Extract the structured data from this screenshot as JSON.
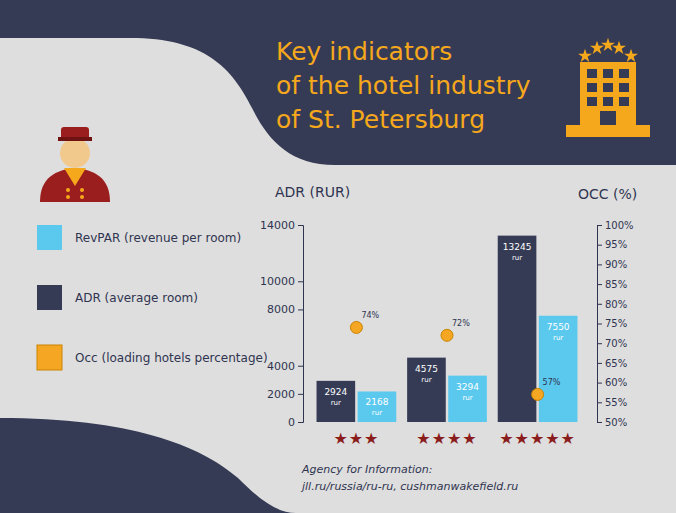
{
  "chart_data": {
    "type": "bar",
    "title": "Key indicators\nof the hotel industry\nof St. Petersburg",
    "y_label": "ADR (RUR)",
    "y2_label": "OCC (%)",
    "categories": [
      "★★★",
      "★★★★",
      "★★★★★"
    ],
    "series": [
      {
        "name": "RevPAR (revenue per room)",
        "type": "bar",
        "color": "#5bc9ee",
        "values": [
          2168,
          3294,
          7550
        ],
        "value_labels": [
          "2168 rur",
          "3294 rur",
          "7550 rur"
        ]
      },
      {
        "name": "ADR (average room)",
        "type": "bar",
        "color": "#363b55",
        "values": [
          2924,
          4575,
          13245
        ],
        "value_labels": [
          "2924 rur",
          "4575 rur",
          "13245 rur"
        ]
      },
      {
        "name": "Occ (loading hotels percentage)",
        "type": "scatter",
        "axis": "y2",
        "color": "#f5a623",
        "marker": "circle",
        "values": [
          74,
          72,
          57
        ],
        "value_labels": [
          "74%",
          "72%",
          "57%"
        ]
      }
    ],
    "ylim": [
      0,
      14000
    ],
    "yticks": [
      0,
      2000,
      4000,
      8000,
      10000,
      14000
    ],
    "y2lim": [
      50,
      100
    ],
    "y2ticks": [
      {
        "value": 50,
        "label": "50%"
      },
      {
        "value": 55,
        "label": "55%"
      },
      {
        "value": 60,
        "label": "60%"
      },
      {
        "value": 65,
        "label": "65%"
      },
      {
        "value": 70,
        "label": "70%"
      },
      {
        "value": 75,
        "label": "75%"
      },
      {
        "value": 80,
        "label": "80%"
      },
      {
        "value": 85,
        "label": "85%"
      },
      {
        "value": 90,
        "label": "90%"
      },
      {
        "value": 95,
        "label": "95%"
      },
      {
        "value": 100,
        "label": "100%"
      }
    ],
    "data_labels": true,
    "legend": "left",
    "grid": false,
    "annotations": [
      "Agency for Information:",
      "jll.ru/russia/ru-ru, cushmanwakefield.ru"
    ]
  }
}
